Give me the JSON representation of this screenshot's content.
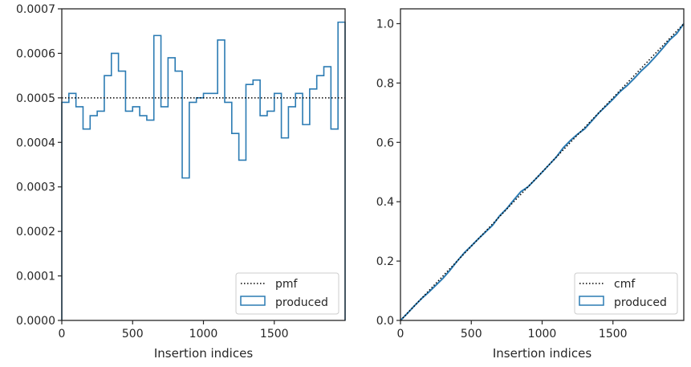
{
  "chart_data": [
    {
      "type": "histogram-step",
      "xlabel": "Insertion indices",
      "ylabel": "",
      "xlim": [
        0,
        2000
      ],
      "ylim": [
        0,
        0.0007
      ],
      "xticks": [
        0,
        500,
        1000,
        1500
      ],
      "yticks": [
        0,
        0.0001,
        0.0002,
        0.0003,
        0.0004,
        0.0005,
        0.0006,
        0.0007
      ],
      "ytick_labels": [
        "0.0000",
        "0.0001",
        "0.0002",
        "0.0003",
        "0.0004",
        "0.0005",
        "0.0006",
        "0.0007"
      ],
      "xtick_labels": [
        "0",
        "500",
        "1000",
        "1500"
      ],
      "grid": false,
      "legend_position": "lower-right",
      "series": [
        {
          "name": "pmf",
          "style": "dotted",
          "color": "#000000",
          "x": [
            0,
            2000
          ],
          "y": [
            0.0005,
            0.0005
          ]
        },
        {
          "name": "produced",
          "style": "step",
          "color": "#2b7bb3",
          "bin_width": 50,
          "values": [
            0.00049,
            0.00051,
            0.00048,
            0.00043,
            0.00046,
            0.00047,
            0.00055,
            0.0006,
            0.00056,
            0.00047,
            0.00048,
            0.00046,
            0.00045,
            0.00064,
            0.00048,
            0.00059,
            0.00056,
            0.00032,
            0.00049,
            0.0005,
            0.00051,
            0.00051,
            0.00063,
            0.00049,
            0.00042,
            0.00036,
            0.00053,
            0.00054,
            0.00046,
            0.00047,
            0.00051,
            0.00041,
            0.00048,
            0.00051,
            0.00044,
            0.00052,
            0.00055,
            0.00057,
            0.00043,
            0.00067
          ]
        }
      ]
    },
    {
      "type": "line",
      "xlabel": "Insertion indices",
      "ylabel": "",
      "xlim": [
        0,
        2000
      ],
      "ylim": [
        0,
        1.05
      ],
      "xticks": [
        0,
        500,
        1000,
        1500
      ],
      "yticks": [
        0,
        0.2,
        0.4,
        0.6,
        0.8,
        1.0
      ],
      "ytick_labels": [
        "0.0",
        "0.2",
        "0.4",
        "0.6",
        "0.8",
        "1.0"
      ],
      "xtick_labels": [
        "0",
        "500",
        "1000",
        "1500"
      ],
      "grid": false,
      "legend_position": "lower-right",
      "series": [
        {
          "name": "cmf",
          "style": "dotted",
          "color": "#000000",
          "x": [
            0,
            2000
          ],
          "y": [
            0,
            1.0
          ]
        },
        {
          "name": "produced",
          "style": "line",
          "color": "#2b7bb3",
          "note_source": "cumulative of left produced histogram"
        }
      ]
    }
  ],
  "legend": {
    "left": {
      "entries": [
        "pmf",
        "produced"
      ]
    },
    "right": {
      "entries": [
        "cmf",
        "produced"
      ]
    }
  }
}
